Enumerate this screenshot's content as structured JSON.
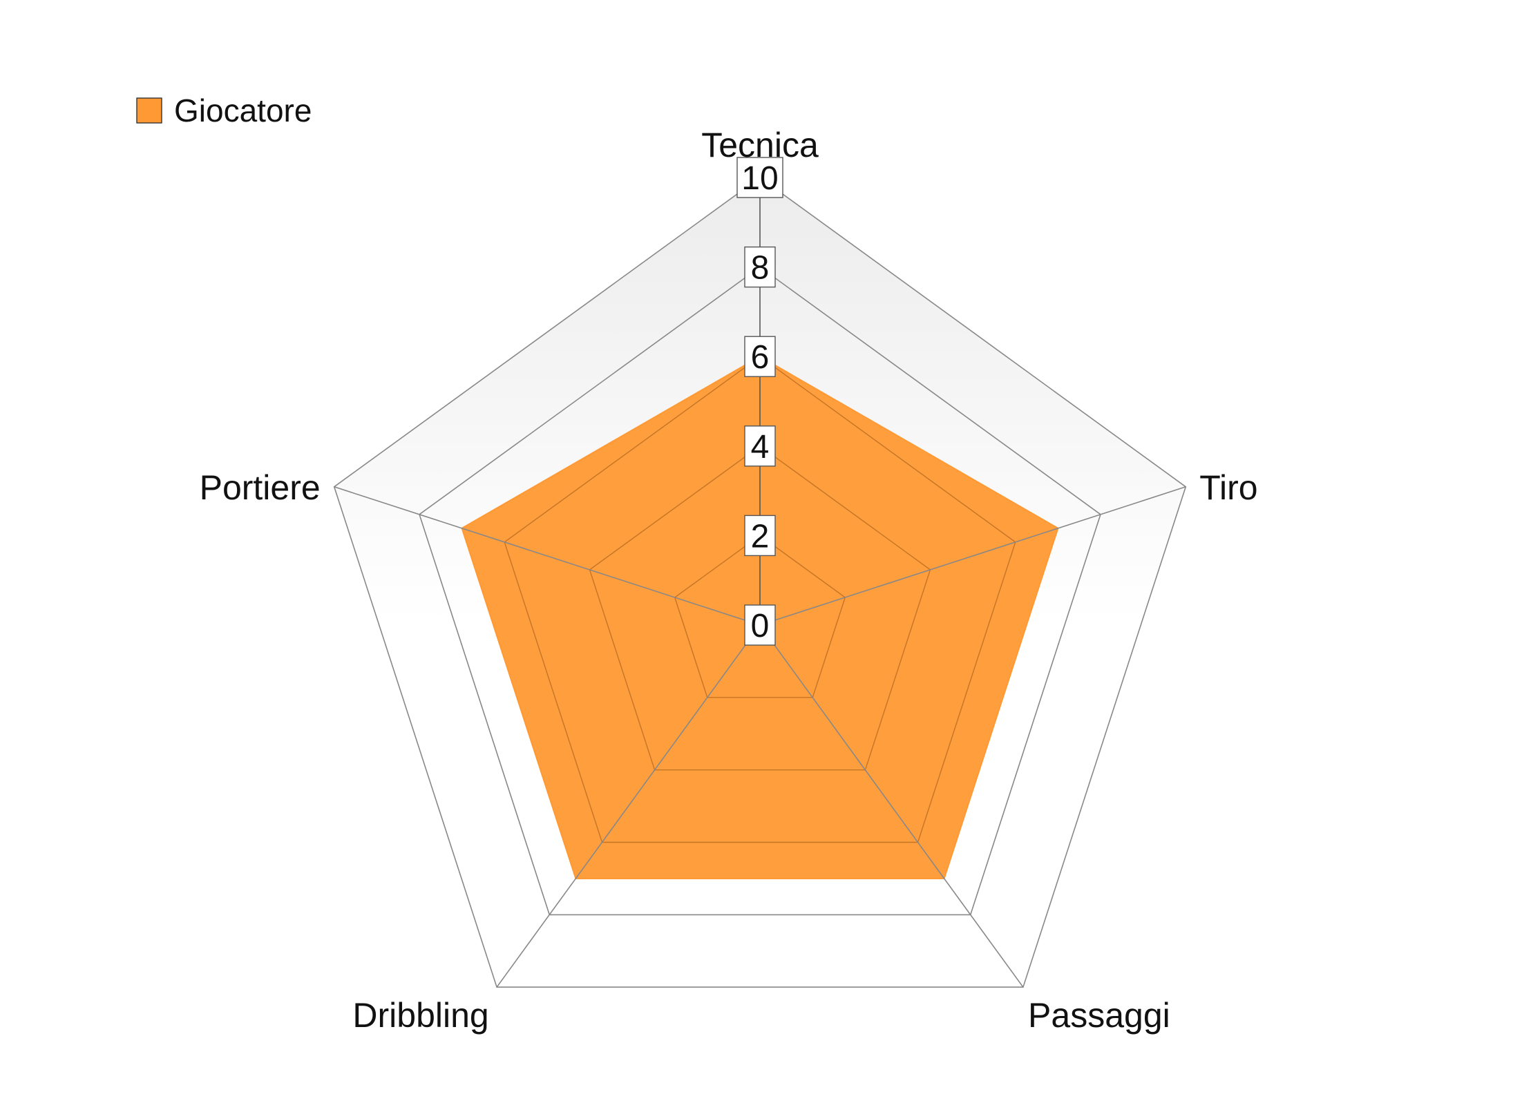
{
  "chart_data": {
    "type": "radar",
    "categories": [
      "Tecnica",
      "Tiro",
      "Passaggi",
      "Dribbling",
      "Portiere"
    ],
    "series": [
      {
        "name": "Giocatore",
        "values": [
          6,
          7,
          7,
          7,
          7
        ],
        "color": "#ff9933"
      }
    ],
    "rlim": [
      0,
      10
    ],
    "ticks": [
      "0",
      "2",
      "4",
      "6",
      "8",
      "10"
    ],
    "grid": true,
    "legend": {
      "position": "top-left"
    },
    "colors": {
      "grid": "#888888",
      "background_gradient_top": "#ececec",
      "background_gradient_bottom": "#ffffff"
    }
  }
}
